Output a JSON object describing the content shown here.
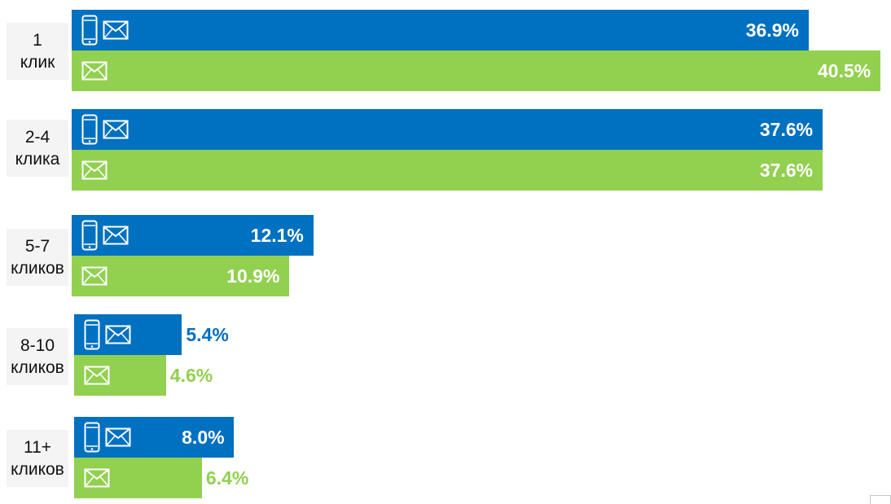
{
  "chart_data": {
    "type": "bar",
    "orientation": "horizontal",
    "categories": [
      "1\nклик",
      "2-4\nклика",
      "5-7\nкликов",
      "8-10\nкликов",
      "11+\nкликов"
    ],
    "series": [
      {
        "name": "phone-and-email",
        "icons": [
          "phone-icon",
          "envelope-icon"
        ],
        "color": "#0070c0",
        "values": [
          36.9,
          37.6,
          12.1,
          5.4,
          8.0
        ],
        "labels": [
          "36.9%",
          "37.6%",
          "12.1%",
          "5.4%",
          "8.0%"
        ]
      },
      {
        "name": "email",
        "icons": [
          "envelope-icon"
        ],
        "color": "#92d050",
        "values": [
          40.5,
          37.6,
          10.9,
          4.6,
          6.4
        ],
        "labels": [
          "40.5%",
          "37.6%",
          "10.9%",
          "4.6%",
          "6.4%"
        ]
      }
    ],
    "title": "",
    "xlabel": "",
    "ylabel": "",
    "xlim": [
      0,
      40.5
    ],
    "grid": false,
    "legend": "none"
  }
}
